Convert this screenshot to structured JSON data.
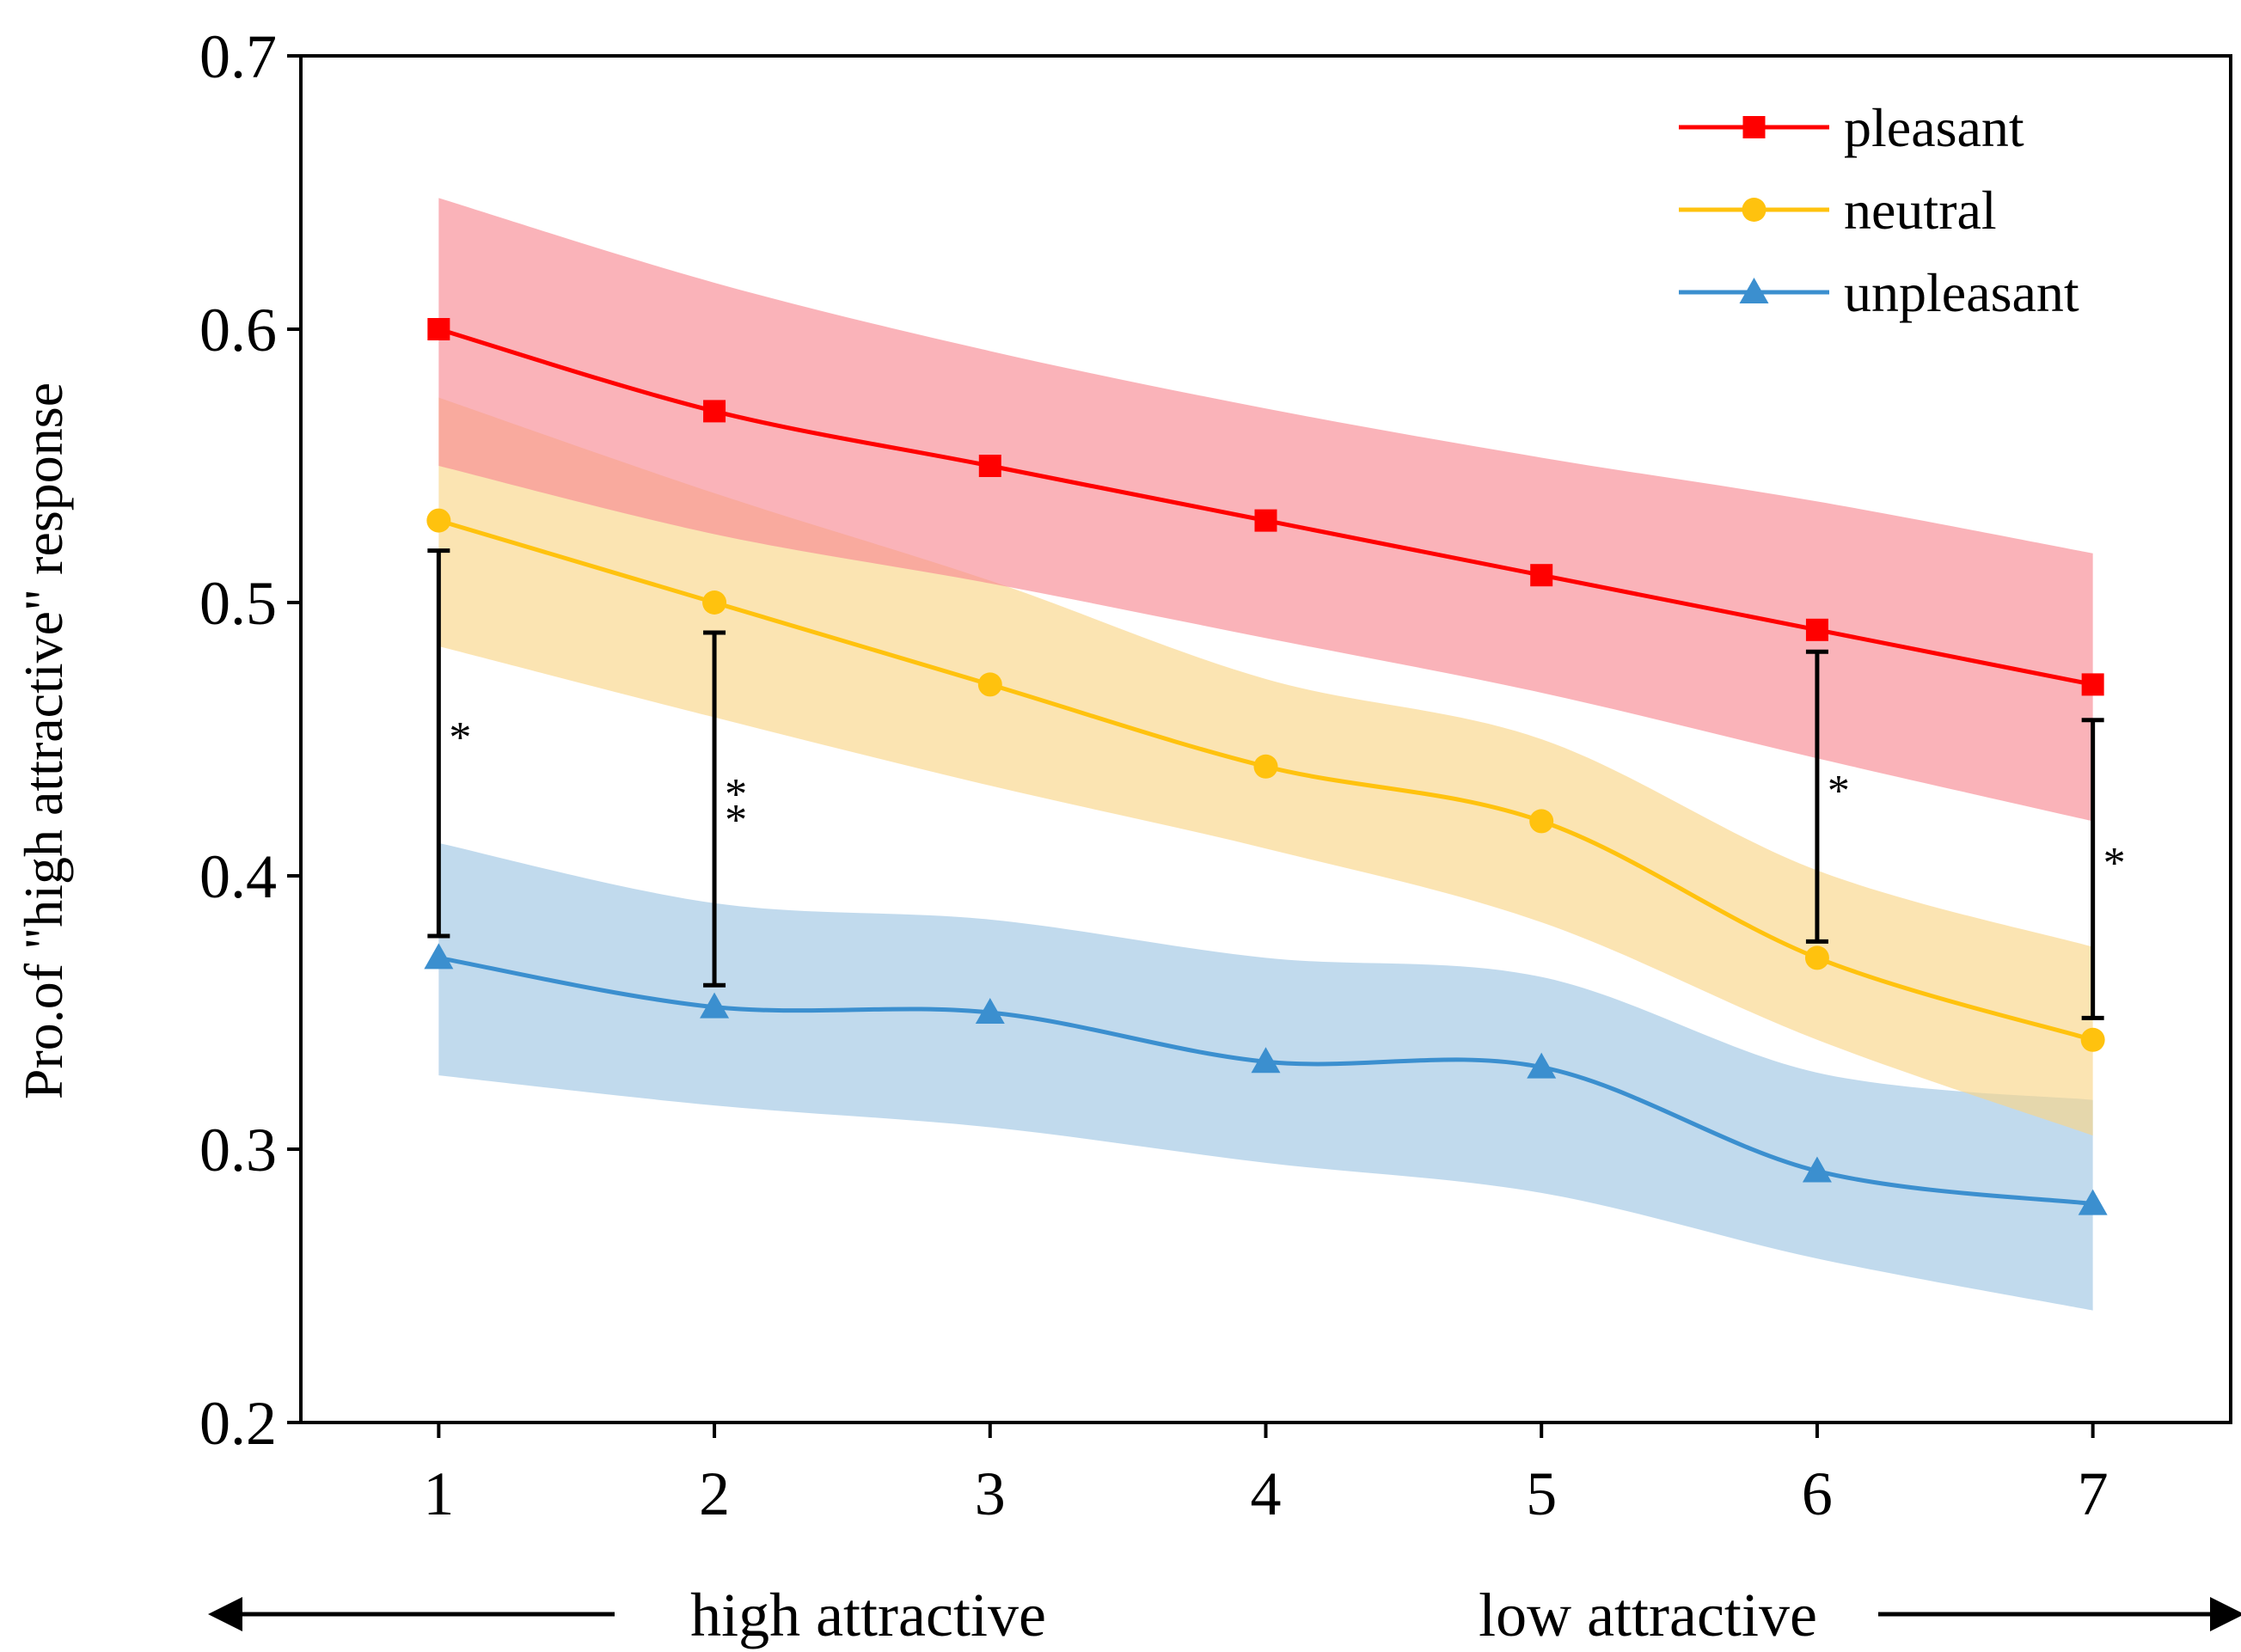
{
  "chart_data": {
    "type": "line",
    "title": "",
    "xlabel": "",
    "ylabel": "Pro.of \"high attractive\" response",
    "x": [
      1,
      2,
      3,
      4,
      5,
      6,
      7
    ],
    "x_ticks": [
      "1",
      "2",
      "3",
      "4",
      "5",
      "6",
      "7"
    ],
    "xlim": [
      0.5,
      7.5
    ],
    "ylim": [
      0.2,
      0.7
    ],
    "y_ticks": [
      "0.2",
      "0.3",
      "0.4",
      "0.5",
      "0.6",
      "0.7"
    ],
    "y_tick_values": [
      0.2,
      0.3,
      0.4,
      0.5,
      0.6,
      0.7
    ],
    "grid": false,
    "legend_position": "top-right",
    "direction_labels": {
      "left": "high attractive",
      "right": "low attractive"
    },
    "series": [
      {
        "name": "pleasant",
        "color": "#ff0000",
        "band_color": "#f88b93",
        "marker": "square",
        "values": [
          0.6,
          0.57,
          0.55,
          0.53,
          0.51,
          0.49,
          0.47
        ],
        "band_lower": [
          0.55,
          0.525,
          0.507,
          0.487,
          0.467,
          0.443,
          0.42
        ],
        "band_upper": [
          0.648,
          0.617,
          0.592,
          0.571,
          0.553,
          0.537,
          0.518
        ]
      },
      {
        "name": "neutral",
        "color": "#ffc20e",
        "band_color": "#f9d689",
        "marker": "circle",
        "values": [
          0.53,
          0.5,
          0.47,
          0.44,
          0.42,
          0.37,
          0.34
        ],
        "band_lower": [
          0.484,
          0.458,
          0.433,
          0.41,
          0.383,
          0.34,
          0.305
        ],
        "band_upper": [
          0.575,
          0.54,
          0.508,
          0.472,
          0.45,
          0.402,
          0.374
        ]
      },
      {
        "name": "unpleasant",
        "color": "#3b8fcf",
        "band_color": "#9fc6e4",
        "marker": "triangle",
        "values": [
          0.37,
          0.352,
          0.35,
          0.332,
          0.33,
          0.292,
          0.28
        ],
        "band_lower": [
          0.327,
          0.316,
          0.308,
          0.295,
          0.284,
          0.26,
          0.241
        ],
        "band_upper": [
          0.412,
          0.39,
          0.384,
          0.37,
          0.363,
          0.328,
          0.318
        ]
      }
    ],
    "significance_brackets": [
      {
        "x": 1,
        "low": 0.378,
        "high": 0.519,
        "label": "*"
      },
      {
        "x": 2,
        "low": 0.36,
        "high": 0.489,
        "label": "**"
      },
      {
        "x": 6,
        "low": 0.376,
        "high": 0.482,
        "label": "*"
      },
      {
        "x": 7,
        "low": 0.348,
        "high": 0.457,
        "label": "*"
      }
    ]
  }
}
